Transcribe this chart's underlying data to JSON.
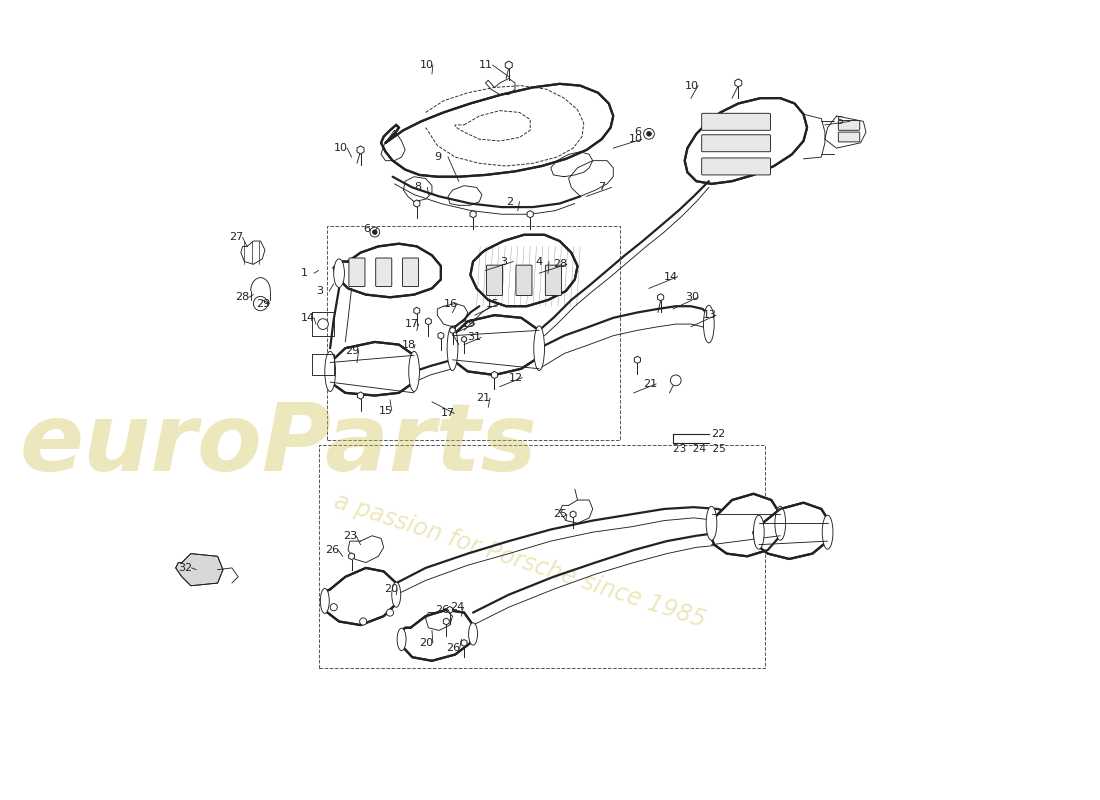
{
  "bg_color": "#ffffff",
  "line_color": "#222222",
  "lw_heavy": 1.6,
  "lw_med": 1.0,
  "lw_thin": 0.65,
  "lw_dash": 0.7,
  "wm1": "euroParts",
  "wm2": "a passion for Porsche since 1985",
  "wm_color": "#cfc050",
  "wm_alpha": 0.38,
  "fs_label": 8.0,
  "xlim": [
    0,
    11
  ],
  "ylim": [
    0,
    8
  ],
  "figw": 11.0,
  "figh": 8.0,
  "dpi": 100,
  "cover_outer": [
    [
      3.1,
      7.05
    ],
    [
      3.25,
      7.22
    ],
    [
      3.5,
      7.38
    ],
    [
      3.9,
      7.5
    ],
    [
      4.35,
      7.56
    ],
    [
      4.8,
      7.54
    ],
    [
      5.15,
      7.44
    ],
    [
      5.42,
      7.28
    ],
    [
      5.55,
      7.1
    ],
    [
      5.58,
      6.88
    ],
    [
      5.5,
      6.65
    ],
    [
      5.3,
      6.45
    ],
    [
      4.95,
      6.28
    ],
    [
      4.5,
      6.18
    ],
    [
      4.0,
      6.15
    ],
    [
      3.55,
      6.2
    ],
    [
      3.2,
      6.35
    ],
    [
      3.0,
      6.55
    ],
    [
      2.95,
      6.78
    ],
    [
      3.0,
      6.95
    ],
    [
      3.1,
      7.05
    ]
  ],
  "cover_inner1": [
    [
      3.8,
      7.15
    ],
    [
      4.1,
      7.28
    ],
    [
      4.45,
      7.32
    ],
    [
      4.8,
      7.26
    ],
    [
      5.05,
      7.1
    ],
    [
      5.15,
      6.9
    ],
    [
      5.1,
      6.72
    ],
    [
      4.85,
      6.58
    ],
    [
      4.5,
      6.5
    ],
    [
      4.1,
      6.5
    ],
    [
      3.78,
      6.6
    ],
    [
      3.62,
      6.78
    ],
    [
      3.65,
      6.98
    ],
    [
      3.8,
      7.15
    ]
  ],
  "cover_inner2": [
    [
      4.05,
      7.0
    ],
    [
      4.25,
      7.08
    ],
    [
      4.48,
      7.06
    ],
    [
      4.62,
      6.95
    ],
    [
      4.6,
      6.82
    ],
    [
      4.4,
      6.72
    ],
    [
      4.15,
      6.72
    ],
    [
      3.98,
      6.82
    ],
    [
      3.96,
      6.95
    ],
    [
      4.05,
      7.0
    ]
  ],
  "cover_bottom_flange": [
    [
      3.05,
      6.18
    ],
    [
      3.25,
      6.08
    ],
    [
      3.6,
      5.98
    ],
    [
      4.05,
      5.92
    ],
    [
      4.5,
      5.9
    ],
    [
      4.88,
      5.95
    ],
    [
      5.12,
      6.05
    ]
  ],
  "cover_bottom_flange2": [
    [
      3.08,
      6.28
    ],
    [
      3.3,
      6.18
    ],
    [
      3.65,
      6.08
    ],
    [
      4.08,
      6.02
    ],
    [
      4.5,
      6.0
    ],
    [
      4.85,
      6.05
    ],
    [
      5.08,
      6.15
    ]
  ],
  "rm_outer": [
    [
      6.6,
      7.18
    ],
    [
      6.72,
      7.28
    ],
    [
      6.95,
      7.36
    ],
    [
      7.25,
      7.38
    ],
    [
      7.52,
      7.3
    ],
    [
      7.68,
      7.12
    ],
    [
      7.72,
      6.9
    ],
    [
      7.65,
      6.68
    ],
    [
      7.48,
      6.52
    ],
    [
      7.22,
      6.42
    ],
    [
      6.95,
      6.38
    ],
    [
      6.68,
      6.42
    ],
    [
      6.48,
      6.58
    ],
    [
      6.38,
      6.78
    ],
    [
      6.42,
      6.98
    ],
    [
      6.6,
      7.18
    ]
  ],
  "rm_flange_right": [
    [
      7.68,
      7.12
    ],
    [
      7.88,
      7.08
    ],
    [
      7.92,
      6.9
    ],
    [
      7.88,
      6.72
    ],
    [
      7.68,
      6.68
    ]
  ],
  "lm_outer": [
    [
      2.72,
      5.62
    ],
    [
      2.88,
      5.72
    ],
    [
      3.12,
      5.8
    ],
    [
      3.38,
      5.82
    ],
    [
      3.58,
      5.75
    ],
    [
      3.72,
      5.62
    ],
    [
      3.72,
      5.48
    ],
    [
      3.58,
      5.35
    ],
    [
      3.3,
      5.28
    ],
    [
      3.0,
      5.26
    ],
    [
      2.72,
      5.32
    ],
    [
      2.55,
      5.48
    ],
    [
      2.55,
      5.58
    ],
    [
      2.72,
      5.62
    ]
  ],
  "cm_outer": [
    [
      4.5,
      5.75
    ],
    [
      4.72,
      5.82
    ],
    [
      4.92,
      5.82
    ],
    [
      5.1,
      5.72
    ],
    [
      5.22,
      5.58
    ],
    [
      5.22,
      5.42
    ],
    [
      5.08,
      5.28
    ],
    [
      4.82,
      5.18
    ],
    [
      4.55,
      5.14
    ],
    [
      4.28,
      5.18
    ],
    [
      4.1,
      5.3
    ],
    [
      4.08,
      5.48
    ],
    [
      4.2,
      5.65
    ],
    [
      4.5,
      5.75
    ]
  ],
  "labels": [
    [
      "10",
      3.5,
      7.72,
      3.62,
      7.62
    ],
    [
      "10",
      2.55,
      6.72,
      2.75,
      6.65
    ],
    [
      "10",
      5.72,
      6.88,
      5.55,
      6.82
    ],
    [
      "10",
      6.52,
      7.52,
      6.42,
      7.42
    ],
    [
      "11",
      4.05,
      7.72,
      3.88,
      7.62
    ],
    [
      "9",
      3.62,
      6.72,
      3.75,
      6.62
    ],
    [
      "8",
      3.38,
      6.32,
      3.55,
      6.22
    ],
    [
      "7",
      5.35,
      6.38,
      5.15,
      6.22
    ],
    [
      "6",
      3.12,
      5.92,
      3.22,
      5.88
    ],
    [
      "6",
      5.92,
      7.02,
      5.88,
      7.12
    ],
    [
      "5",
      7.88,
      7.1,
      7.78,
      6.98
    ],
    [
      "4",
      4.72,
      5.55,
      4.85,
      5.45
    ],
    [
      "3",
      2.28,
      5.25,
      2.48,
      5.32
    ],
    [
      "3",
      4.32,
      5.58,
      4.2,
      5.48
    ],
    [
      "2",
      4.32,
      6.25,
      4.42,
      6.15
    ],
    [
      "1",
      2.08,
      5.42,
      2.28,
      5.5
    ],
    [
      "14",
      2.05,
      4.92,
      2.32,
      4.85
    ],
    [
      "27",
      1.32,
      5.72,
      1.52,
      5.68
    ],
    [
      "29",
      1.65,
      5.42,
      1.82,
      5.32
    ],
    [
      "28",
      1.45,
      5.18,
      1.65,
      5.12
    ],
    [
      "28",
      4.92,
      5.55,
      4.78,
      5.45
    ],
    [
      "29",
      2.58,
      4.55,
      2.72,
      4.42
    ],
    [
      "16",
      3.72,
      5.05,
      3.82,
      4.95
    ],
    [
      "17",
      2.95,
      4.82,
      3.08,
      4.72
    ],
    [
      "18",
      2.92,
      4.62,
      3.05,
      4.52
    ],
    [
      "19",
      3.82,
      4.82,
      3.72,
      4.72
    ],
    [
      "31",
      3.85,
      4.68,
      3.75,
      4.58
    ],
    [
      "15",
      4.08,
      5.05,
      3.98,
      4.95
    ],
    [
      "15",
      2.95,
      3.92,
      3.08,
      4.05
    ],
    [
      "17",
      3.62,
      3.88,
      3.52,
      4.02
    ],
    [
      "12",
      4.38,
      4.28,
      4.25,
      4.18
    ],
    [
      "13",
      6.58,
      4.95,
      6.42,
      4.82
    ],
    [
      "21",
      5.92,
      4.18,
      5.78,
      4.08
    ],
    [
      "21",
      4.05,
      4.05,
      4.18,
      3.95
    ],
    [
      "30",
      6.35,
      5.12,
      6.22,
      5.02
    ],
    [
      "22",
      6.42,
      3.62,
      null,
      null
    ],
    [
      "23",
      6.15,
      3.52,
      null,
      null
    ],
    [
      "24",
      6.28,
      3.52,
      null,
      null
    ],
    [
      "25",
      6.42,
      3.52,
      null,
      null
    ],
    [
      "23",
      2.68,
      2.48,
      2.88,
      2.38
    ],
    [
      "25",
      4.98,
      2.72,
      5.12,
      2.65
    ],
    [
      "26",
      2.45,
      2.35,
      2.62,
      2.28
    ],
    [
      "26",
      3.68,
      1.68,
      3.85,
      1.62
    ],
    [
      "26",
      3.82,
      1.25,
      3.98,
      1.35
    ],
    [
      "20",
      3.08,
      1.88,
      3.22,
      1.82
    ],
    [
      "20",
      3.48,
      1.32,
      3.62,
      1.45
    ],
    [
      "24",
      3.75,
      1.72,
      3.88,
      1.62
    ],
    [
      "32",
      0.82,
      2.12,
      1.0,
      2.08
    ]
  ]
}
